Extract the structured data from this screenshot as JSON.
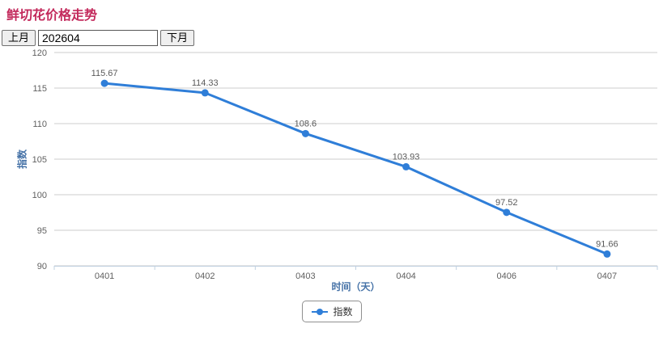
{
  "header": {
    "title": "鲜切花价格走势"
  },
  "toolbar": {
    "prev_label": "上月",
    "period_value": "202604",
    "next_label": "下月"
  },
  "chart_data": {
    "type": "line",
    "categories": [
      "0401",
      "0402",
      "0403",
      "0404",
      "0406",
      "0407"
    ],
    "series": [
      {
        "name": "指数",
        "values": [
          115.67,
          114.33,
          108.6,
          103.93,
          97.52,
          91.66
        ]
      }
    ],
    "title": "",
    "xlabel": "时间（天）",
    "ylabel": "指数",
    "ylim": [
      90,
      120
    ],
    "ytick_step": 5,
    "grid": true,
    "legend_position": "bottom-center",
    "data_labels_visible": true
  },
  "colors": {
    "title": "#c32a5c",
    "line": "#2f7ed8",
    "axis_title": "#4572a7",
    "tick_label": "#606060",
    "data_label": "#5a5a5a",
    "grid": "#cccccc",
    "axis_line": "#c0d0e0",
    "legend_border": "#909090",
    "legend_text": "#333333"
  }
}
